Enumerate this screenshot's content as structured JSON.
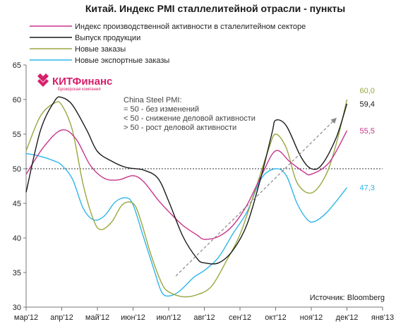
{
  "chart_data": {
    "type": "line",
    "title": "Китай. Индекс PMI сталлелитейной отрасли - пункты",
    "x_labels": [
      "мар'12",
      "апр'12",
      "май'12",
      "июн'12",
      "июл'12",
      "авг'12",
      "сен'12",
      "окт'12",
      "ноя'12",
      "дек'12",
      "янв'13"
    ],
    "ylim": [
      30,
      65
    ],
    "yticks": [
      30,
      35,
      40,
      45,
      50,
      55,
      60,
      65
    ],
    "reference_line": 50,
    "series": [
      {
        "name": "Индекс производственной активности в сталелитейном секторе",
        "color": "#c8348c",
        "end_label": "55,5",
        "points": [
          [
            0,
            49.2
          ],
          [
            0.5,
            53.2
          ],
          [
            1,
            55.6
          ],
          [
            1.4,
            54.3
          ],
          [
            1.8,
            50.5
          ],
          [
            2.2,
            48.6
          ],
          [
            2.6,
            48.4
          ],
          [
            3,
            49.0
          ],
          [
            3.3,
            48.1
          ],
          [
            3.7,
            45.5
          ],
          [
            4,
            43.8
          ],
          [
            4.4,
            41.8
          ],
          [
            4.8,
            40.4
          ],
          [
            5,
            39.8
          ],
          [
            5.4,
            40.2
          ],
          [
            5.8,
            41.8
          ],
          [
            6.2,
            44.8
          ],
          [
            6.6,
            49.0
          ],
          [
            7,
            52.6
          ],
          [
            7.4,
            51.0
          ],
          [
            7.8,
            49.5
          ],
          [
            8,
            49.2
          ],
          [
            8.5,
            50.9
          ],
          [
            9,
            55.5
          ]
        ]
      },
      {
        "name": "Выпуск продукции",
        "color": "#1a1a1a",
        "end_label": "59,4",
        "points": [
          [
            0,
            46.6
          ],
          [
            0.4,
            55.5
          ],
          [
            0.8,
            59.8
          ],
          [
            1,
            60.3
          ],
          [
            1.3,
            59.2
          ],
          [
            1.7,
            55.6
          ],
          [
            2,
            52.5
          ],
          [
            2.4,
            51.1
          ],
          [
            2.8,
            50.2
          ],
          [
            3.3,
            49.8
          ],
          [
            3.7,
            48.6
          ],
          [
            4,
            45.3
          ],
          [
            4.4,
            40.2
          ],
          [
            4.8,
            37.0
          ],
          [
            5,
            36.4
          ],
          [
            5.4,
            36.4
          ],
          [
            5.8,
            38.2
          ],
          [
            6.2,
            42.0
          ],
          [
            6.6,
            49.0
          ],
          [
            6.9,
            55.2
          ],
          [
            7,
            57.0
          ],
          [
            7.3,
            56.2
          ],
          [
            7.7,
            51.8
          ],
          [
            8,
            50.0
          ],
          [
            8.3,
            50.6
          ],
          [
            8.7,
            54.5
          ],
          [
            9,
            59.4
          ]
        ]
      },
      {
        "name": "Новые заказы",
        "color": "#9aa640",
        "end_label": "60,0",
        "points": [
          [
            0,
            52.6
          ],
          [
            0.4,
            57.6
          ],
          [
            0.8,
            59.5
          ],
          [
            1,
            59.2
          ],
          [
            1.3,
            55.5
          ],
          [
            1.6,
            47.7
          ],
          [
            1.9,
            42.5
          ],
          [
            2.1,
            41.2
          ],
          [
            2.4,
            42.3
          ],
          [
            2.7,
            44.8
          ],
          [
            3,
            45.0
          ],
          [
            3.2,
            42.8
          ],
          [
            3.5,
            37.6
          ],
          [
            3.8,
            33.5
          ],
          [
            4,
            32.2
          ],
          [
            4.4,
            31.5
          ],
          [
            4.8,
            31.8
          ],
          [
            5.2,
            33.0
          ],
          [
            5.6,
            36.5
          ],
          [
            6,
            40.5
          ],
          [
            6.4,
            46.5
          ],
          [
            6.8,
            52.8
          ],
          [
            7,
            55.0
          ],
          [
            7.3,
            53.0
          ],
          [
            7.6,
            48.0
          ],
          [
            8,
            46.5
          ],
          [
            8.4,
            49.0
          ],
          [
            8.7,
            53.6
          ],
          [
            9,
            60.0
          ]
        ]
      },
      {
        "name": "Новые экспортные заказы",
        "color": "#2eb5e8",
        "end_label": "47,3",
        "points": [
          [
            0,
            52.2
          ],
          [
            0.4,
            51.8
          ],
          [
            0.8,
            51.1
          ],
          [
            1,
            50.5
          ],
          [
            1.3,
            48.5
          ],
          [
            1.6,
            44.3
          ],
          [
            1.9,
            42.6
          ],
          [
            2.2,
            43.2
          ],
          [
            2.5,
            45.2
          ],
          [
            2.8,
            45.8
          ],
          [
            3,
            44.8
          ],
          [
            3.3,
            40.0
          ],
          [
            3.6,
            35.2
          ],
          [
            3.8,
            32.2
          ],
          [
            4,
            31.6
          ],
          [
            4.3,
            32.3
          ],
          [
            4.7,
            34.3
          ],
          [
            5,
            35.3
          ],
          [
            5.4,
            37.2
          ],
          [
            5.8,
            40.6
          ],
          [
            6.2,
            43.8
          ],
          [
            6.6,
            48.6
          ],
          [
            7,
            50.0
          ],
          [
            7.3,
            49.0
          ],
          [
            7.6,
            45.0
          ],
          [
            7.9,
            42.6
          ],
          [
            8.1,
            42.4
          ],
          [
            8.4,
            43.5
          ],
          [
            8.7,
            45.3
          ],
          [
            9,
            47.3
          ]
        ]
      }
    ],
    "annotation": {
      "lines": [
        "China Steel PMI:",
        "= 50 - без изменений",
        "< 50 - снижение деловой активности",
        "> 50 - рост деловой активности"
      ]
    },
    "source": "Источник: Bloomberg",
    "logo": {
      "name": "КИТФинанс",
      "sub": "Брокерская компания"
    }
  }
}
